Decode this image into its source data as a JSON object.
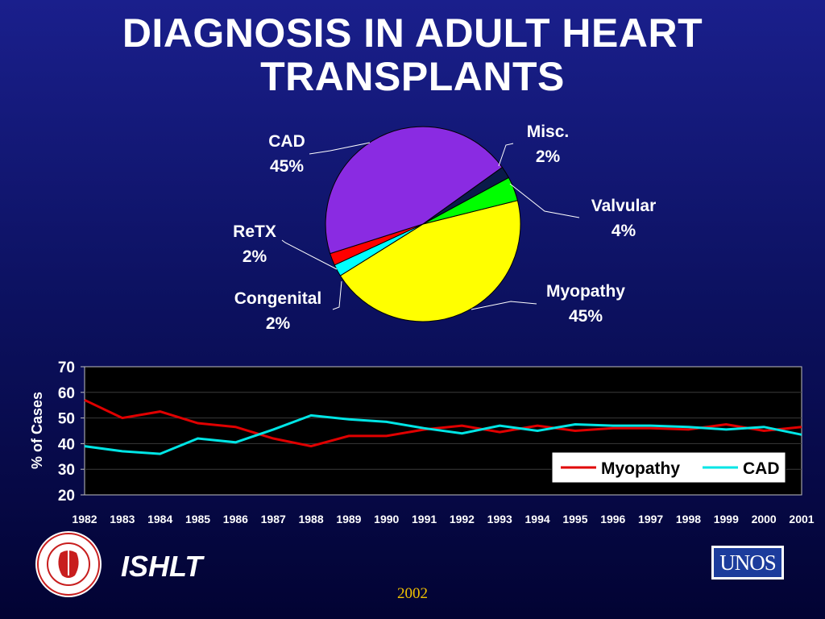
{
  "slide": {
    "title_line1": "DIAGNOSIS IN ADULT HEART",
    "title_line2": "TRANSPLANTS",
    "org_name": "ISHLT",
    "year": "2002",
    "logo_unos": "UNOS",
    "logo_ishlt_text": "INTERNATIONAL SOCIETY FOR HEART & LUNG TRANSPLANTATION"
  },
  "chart_data": [
    {
      "type": "pie",
      "slices": [
        {
          "name": "Myopathy",
          "pct_label": "45%",
          "value": 45,
          "color": "#ffff00"
        },
        {
          "name": "Congenital",
          "pct_label": "2%",
          "value": 2,
          "color": "#00ffff"
        },
        {
          "name": "ReTX",
          "pct_label": "2%",
          "value": 2,
          "color": "#ff0000"
        },
        {
          "name": "CAD",
          "pct_label": "45%",
          "value": 45,
          "color": "#8a2be2"
        },
        {
          "name": "Misc.",
          "pct_label": "2%",
          "value": 2,
          "color": "#0a1a4a"
        },
        {
          "name": "Valvular",
          "pct_label": "4%",
          "value": 4,
          "color": "#00ff00"
        }
      ]
    },
    {
      "type": "line",
      "x": [
        "1982",
        "1983",
        "1984",
        "1985",
        "1986",
        "1987",
        "1988",
        "1989",
        "1990",
        "1991",
        "1992",
        "1993",
        "1994",
        "1995",
        "1996",
        "1997",
        "1998",
        "1999",
        "2000",
        "2001"
      ],
      "series": [
        {
          "name": "Myopathy",
          "color": "#e00000",
          "values": [
            57,
            50,
            52.5,
            48,
            46.5,
            42,
            39,
            43,
            43,
            45.5,
            47,
            44.5,
            47,
            45,
            46,
            46,
            45.5,
            47.5,
            45,
            46.5
          ]
        },
        {
          "name": "CAD",
          "color": "#00e5e5",
          "values": [
            39,
            37,
            36,
            42,
            40.5,
            45.5,
            51,
            49.5,
            48.5,
            46,
            44,
            47,
            45,
            47.5,
            47,
            47,
            46.5,
            45.5,
            46.5,
            43.5
          ]
        }
      ],
      "ylabel": "% of Cases",
      "ylim": [
        20,
        70
      ],
      "yticks": [
        "70",
        "60",
        "50",
        "40",
        "30",
        "20"
      ],
      "grid": true,
      "legend_position": "bottom-right"
    }
  ]
}
